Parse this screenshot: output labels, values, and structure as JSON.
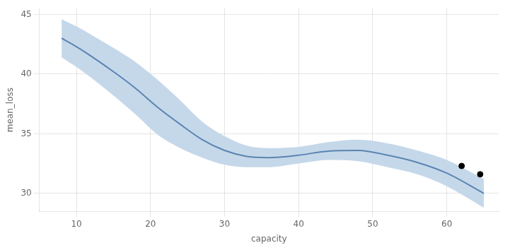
{
  "chart_data": {
    "type": "line",
    "xlabel": "capacity",
    "ylabel": "mean_loss",
    "xlim": [
      5,
      67
    ],
    "ylim": [
      28.5,
      45.5
    ],
    "xticks": [
      10,
      20,
      30,
      40,
      50,
      60
    ],
    "yticks": [
      30,
      35,
      40,
      45
    ],
    "grid": true,
    "series": [
      {
        "type": "band",
        "color": "#c5d8ea",
        "x": [
          8,
          10,
          12,
          15,
          18,
          21,
          24,
          27,
          30,
          33,
          36,
          40,
          44,
          48,
          52,
          56,
          60,
          65
        ],
        "upper": [
          44.6,
          44.0,
          43.3,
          42.2,
          41.0,
          39.5,
          37.8,
          36.0,
          34.8,
          34.0,
          33.8,
          33.9,
          34.3,
          34.5,
          34.2,
          33.6,
          32.8,
          31.2
        ],
        "lower": [
          41.4,
          40.6,
          39.7,
          38.2,
          36.6,
          34.9,
          33.8,
          33.0,
          32.4,
          32.2,
          32.2,
          32.5,
          32.8,
          32.7,
          32.2,
          31.6,
          30.6,
          28.8
        ]
      },
      {
        "type": "line",
        "color": "#5b84b1",
        "x": [
          8,
          10,
          12,
          15,
          18,
          21,
          24,
          27,
          30,
          33,
          36,
          40,
          44,
          48,
          52,
          56,
          60,
          65
        ],
        "values": [
          43.0,
          42.3,
          41.5,
          40.2,
          38.8,
          37.2,
          35.8,
          34.5,
          33.6,
          33.1,
          33.0,
          33.2,
          33.55,
          33.6,
          33.2,
          32.6,
          31.7,
          30.0
        ]
      },
      {
        "type": "scatter",
        "color": "#000000",
        "x": [
          62.0,
          64.5
        ],
        "values": [
          32.3,
          31.6
        ]
      }
    ]
  }
}
